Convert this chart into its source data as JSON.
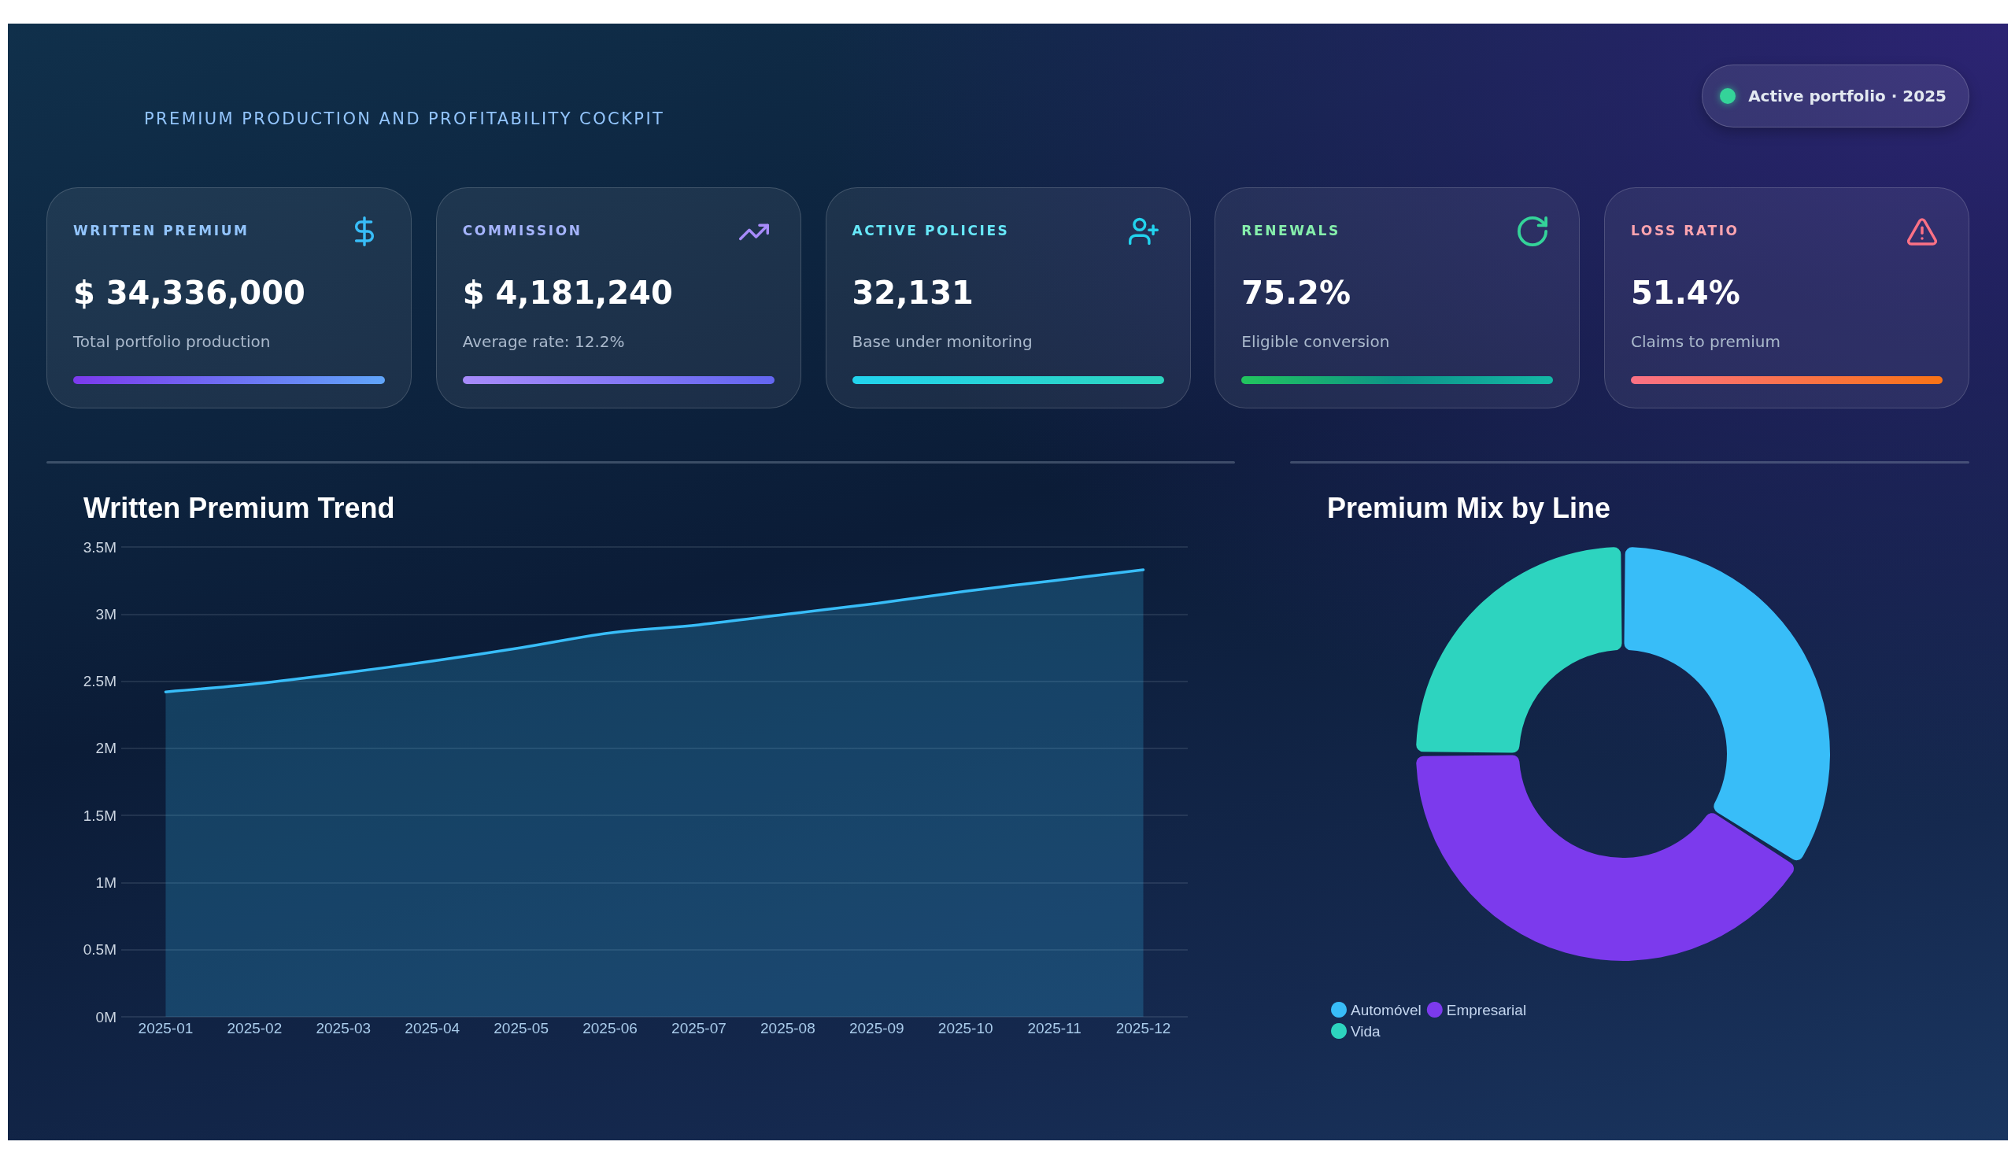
{
  "chart_data": [
    {
      "type": "other",
      "subtitle": "PREMIUM PRODUCTION AND PROFITABILITY COCKPIT",
      "annotations": [
        "Active portfolio · 2025"
      ]
    },
    {
      "type": "other",
      "categories": [
        "WRITTEN PREMIUM",
        "COMMISSION",
        "ACTIVE POLICIES",
        "RENEWALS",
        "LOSS RATIO"
      ],
      "values": [
        34336000,
        4181240,
        32131,
        75.2,
        51.4
      ],
      "value_labels": [
        "$ 34,336,000",
        "$ 4,181,240",
        "32,131",
        "75.2%",
        "51.4%"
      ],
      "annotations": [
        "Total portfolio production",
        "Average rate: 12.2%",
        "Base under monitoring",
        "Eligible conversion",
        "Claims to premium"
      ]
    },
    {
      "type": "area",
      "title": "Written Premium Trend",
      "categories": [
        "2025-01",
        "2025-02",
        "2025-03",
        "2025-04",
        "2025-05",
        "2025-06",
        "2025-07",
        "2025-08",
        "2025-09",
        "2025-10",
        "2025-11",
        "2025-12"
      ],
      "values": [
        2.42,
        2.48,
        2.56,
        2.65,
        2.75,
        2.86,
        2.92,
        3.0,
        3.08,
        3.17,
        3.25,
        3.33
      ],
      "color": "#38bdf8",
      "ylim": [
        0,
        3.5
      ],
      "yticks": [
        {
          "value": 0,
          "label": "0M"
        },
        {
          "value": 0.5,
          "label": "0.5M"
        },
        {
          "value": 1,
          "label": "1M"
        },
        {
          "value": 1.5,
          "label": "1.5M"
        },
        {
          "value": 2,
          "label": "2M"
        },
        {
          "value": 2.5,
          "label": "2.5M"
        },
        {
          "value": 3,
          "label": "3M"
        },
        {
          "value": 3.5,
          "label": "3.5M"
        }
      ],
      "grid": "y",
      "marker": "none",
      "line_style": "solid"
    },
    {
      "type": "donut",
      "title": "Premium Mix by Line",
      "categories": [
        "Automóvel",
        "Empresarial",
        "Vida"
      ],
      "values": [
        34,
        41,
        25
      ],
      "colors": [
        "#38bdf8",
        "#7c3aed",
        "#2dd4bf"
      ],
      "legend": "bottom left"
    }
  ]
}
